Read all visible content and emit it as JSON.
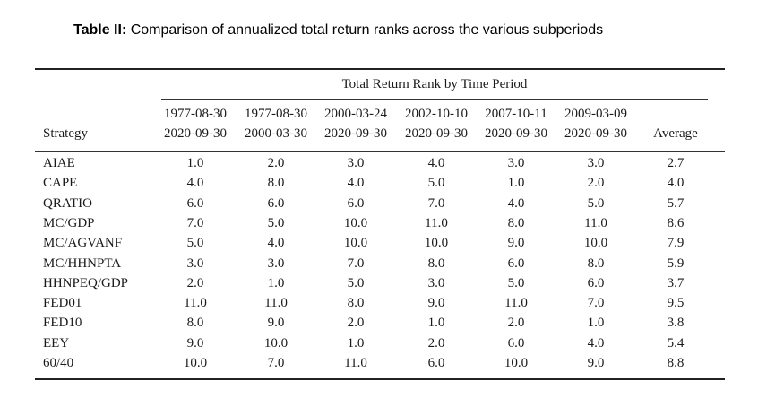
{
  "caption": {
    "label": "Table II:",
    "text": " Comparison of annualized total return ranks across the various subperiods"
  },
  "table": {
    "group_header": "Total Return Rank by Time Period",
    "strategy_header": "Strategy",
    "columns": [
      {
        "start": "1977-08-30",
        "end": "2020-09-30"
      },
      {
        "start": "1977-08-30",
        "end": "2000-03-30"
      },
      {
        "start": "2000-03-24",
        "end": "2020-09-30"
      },
      {
        "start": "2002-10-10",
        "end": "2020-09-30"
      },
      {
        "start": "2007-10-11",
        "end": "2020-09-30"
      },
      {
        "start": "2009-03-09",
        "end": "2020-09-30"
      },
      {
        "start": "",
        "end": "Average"
      }
    ],
    "rows": [
      {
        "name": "AIAE",
        "values": [
          "1.0",
          "2.0",
          "3.0",
          "4.0",
          "3.0",
          "3.0",
          "2.7"
        ]
      },
      {
        "name": "CAPE",
        "values": [
          "4.0",
          "8.0",
          "4.0",
          "5.0",
          "1.0",
          "2.0",
          "4.0"
        ]
      },
      {
        "name": "QRATIO",
        "values": [
          "6.0",
          "6.0",
          "6.0",
          "7.0",
          "4.0",
          "5.0",
          "5.7"
        ]
      },
      {
        "name": "MC/GDP",
        "values": [
          "7.0",
          "5.0",
          "10.0",
          "11.0",
          "8.0",
          "11.0",
          "8.6"
        ]
      },
      {
        "name": "MC/AGVANF",
        "values": [
          "5.0",
          "4.0",
          "10.0",
          "10.0",
          "9.0",
          "10.0",
          "7.9"
        ]
      },
      {
        "name": "MC/HHNPTA",
        "values": [
          "3.0",
          "3.0",
          "7.0",
          "8.0",
          "6.0",
          "8.0",
          "5.9"
        ]
      },
      {
        "name": "HHNPEQ/GDP",
        "values": [
          "2.0",
          "1.0",
          "5.0",
          "3.0",
          "5.0",
          "6.0",
          "3.7"
        ]
      },
      {
        "name": "FED01",
        "values": [
          "11.0",
          "11.0",
          "8.0",
          "9.0",
          "11.0",
          "7.0",
          "9.5"
        ]
      },
      {
        "name": "FED10",
        "values": [
          "8.0",
          "9.0",
          "2.0",
          "1.0",
          "2.0",
          "1.0",
          "3.8"
        ]
      },
      {
        "name": "EEY",
        "values": [
          "9.0",
          "10.0",
          "1.0",
          "2.0",
          "6.0",
          "4.0",
          "5.4"
        ]
      },
      {
        "name": "60/40",
        "values": [
          "10.0",
          "7.0",
          "11.0",
          "6.0",
          "10.0",
          "9.0",
          "8.8"
        ]
      }
    ]
  }
}
